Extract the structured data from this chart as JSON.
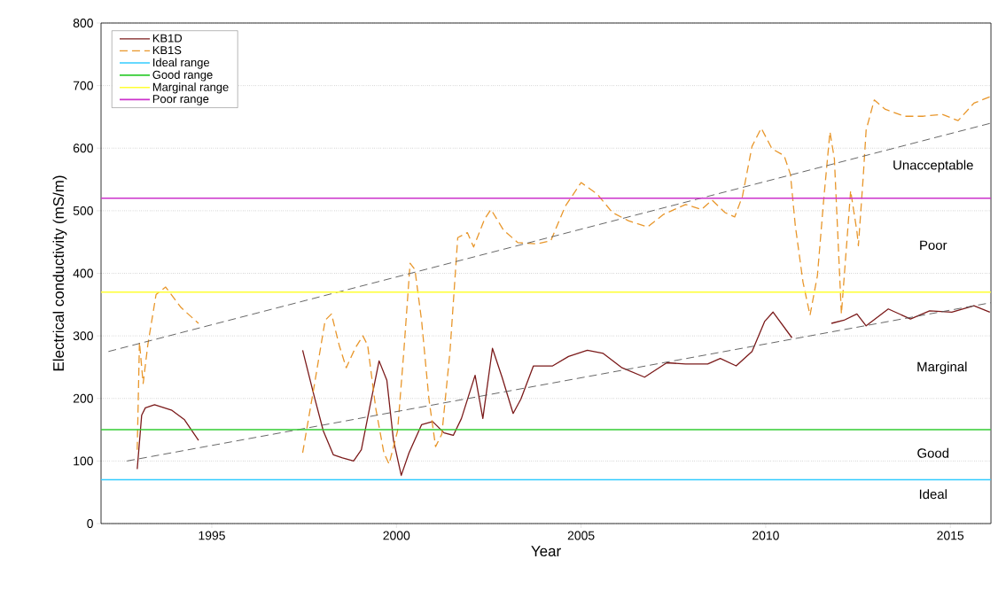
{
  "chart_data": {
    "type": "line",
    "xlabel": "Year",
    "ylabel": "Electrical conductivity (mS/m)",
    "xlim": [
      1992,
      2016.1
    ],
    "xticks": [
      1995,
      2000,
      2005,
      2010,
      2015
    ],
    "ylim": [
      0,
      800
    ],
    "yticks": [
      0,
      100,
      200,
      300,
      400,
      500,
      600,
      700,
      800
    ],
    "grid": "y",
    "legend": "top left",
    "series": [
      {
        "name": "KB1D",
        "color": "#7b1a1a",
        "line_style": "solid",
        "x": [
          1992.98,
          1993.1,
          1993.2,
          1993.45,
          1993.92,
          1994.26,
          1994.64,
          1996,
          1997.46,
          1997.77,
          1998.02,
          1998.29,
          1998.54,
          1998.84,
          1999.05,
          1999.27,
          1999.53,
          1999.74,
          1999.92,
          2000.13,
          2000.34,
          2000.68,
          2000.98,
          2001.29,
          2001.54,
          2001.76,
          2002.13,
          2002.34,
          2002.6,
          2002.86,
          2003.16,
          2003.37,
          2003.71,
          2004.23,
          2004.66,
          2005.17,
          2005.6,
          2006.11,
          2006.72,
          2007.32,
          2007.83,
          2008.43,
          2008.77,
          2009.2,
          2009.63,
          2009.97,
          2010.2,
          2010.71,
          2011.2,
          2011.78,
          2012.12,
          2012.47,
          2012.72,
          2013.32,
          2013.92,
          2014.44,
          2015.04,
          2015.64,
          2016.07
        ],
        "values": [
          87,
          173,
          185,
          190,
          181,
          166,
          133,
          null,
          277,
          204,
          148,
          110,
          105,
          100,
          118,
          184,
          260,
          229,
          133,
          77,
          113,
          158,
          163,
          145,
          141,
          168,
          237,
          168,
          280,
          234,
          176,
          199,
          252,
          252,
          267,
          277,
          272,
          249,
          234,
          257,
          255,
          255,
          264,
          252,
          275,
          323,
          338,
          297,
          null,
          320,
          325,
          335,
          316,
          343,
          327,
          340,
          338,
          348,
          338
        ]
      },
      {
        "name": "KB1S",
        "color": "#e8962a",
        "line_style": "dashed",
        "x": [
          1992.98,
          1993.04,
          1993.14,
          1993.27,
          1993.49,
          1993.75,
          1994.17,
          1994.64,
          1996,
          1997.46,
          1997.77,
          1998.07,
          1998.24,
          1998.45,
          1998.64,
          1998.88,
          1999.09,
          1999.22,
          1999.44,
          1999.66,
          1999.8,
          2000.03,
          2000.2,
          2000.37,
          2000.5,
          2000.68,
          2000.88,
          2001.06,
          2001.23,
          2001.45,
          2001.66,
          2001.92,
          2002.09,
          2002.39,
          2002.56,
          2002.9,
          2003.29,
          2003.8,
          2004.18,
          2004.57,
          2005,
          2005.43,
          2005.85,
          2006.28,
          2006.8,
          2007.23,
          2007.83,
          2008.26,
          2008.55,
          2008.9,
          2009.16,
          2009.37,
          2009.63,
          2009.88,
          2010.17,
          2010.5,
          2010.67,
          2010.8,
          2011.01,
          2011.2,
          2011.4,
          2011.57,
          2011.74,
          2011.86,
          2011.96,
          2012.05,
          2012.2,
          2012.3,
          2012.47,
          2012.51,
          2012.64,
          2012.72,
          2012.94,
          2013.24,
          2013.76,
          2014.27,
          2014.78,
          2015.21,
          2015.64,
          2016.07
        ],
        "values": [
          118,
          290,
          224,
          287,
          366,
          378,
          345,
          320,
          null,
          113,
          219,
          325,
          335,
          285,
          249,
          280,
          300,
          285,
          184,
          113,
          95,
          148,
          275,
          416,
          406,
          325,
          199,
          123,
          143,
          275,
          457,
          465,
          442,
          487,
          502,
          469,
          449,
          447,
          452,
          507,
          545,
          527,
          497,
          484,
          474,
          494,
          510,
          502,
          517,
          497,
          490,
          523,
          603,
          632,
          599,
          588,
          558,
          477,
          386,
          333,
          396,
          517,
          626,
          583,
          452,
          335,
          452,
          532,
          467,
          444,
          553,
          629,
          677,
          662,
          651,
          651,
          654,
          644,
          672,
          682
        ]
      },
      {
        "type": "line",
        "color": "#555555",
        "line_style": "dashed",
        "x": [
          1992.2,
          2016.1
        ],
        "values": [
          275,
          640
        ]
      },
      {
        "type": "line",
        "color": "#555555",
        "line_style": "dashed",
        "x": [
          1992.7,
          2016.1
        ],
        "values": [
          100,
          353
        ]
      }
    ],
    "ref_lines": [
      {
        "axis": "y",
        "value": 70,
        "label": "Ideal range",
        "color": "#33ccff"
      },
      {
        "axis": "y",
        "value": 150,
        "label": "Good range",
        "color": "#33cc33"
      },
      {
        "axis": "y",
        "value": 370,
        "label": "Marginal range",
        "color": "#ffff33"
      },
      {
        "axis": "y",
        "value": 520,
        "label": "Poor range",
        "color": "#cc33cc"
      }
    ],
    "annotations": [
      "Unacceptable",
      "Poor",
      "Marginal",
      "Good",
      "Ideal"
    ]
  }
}
